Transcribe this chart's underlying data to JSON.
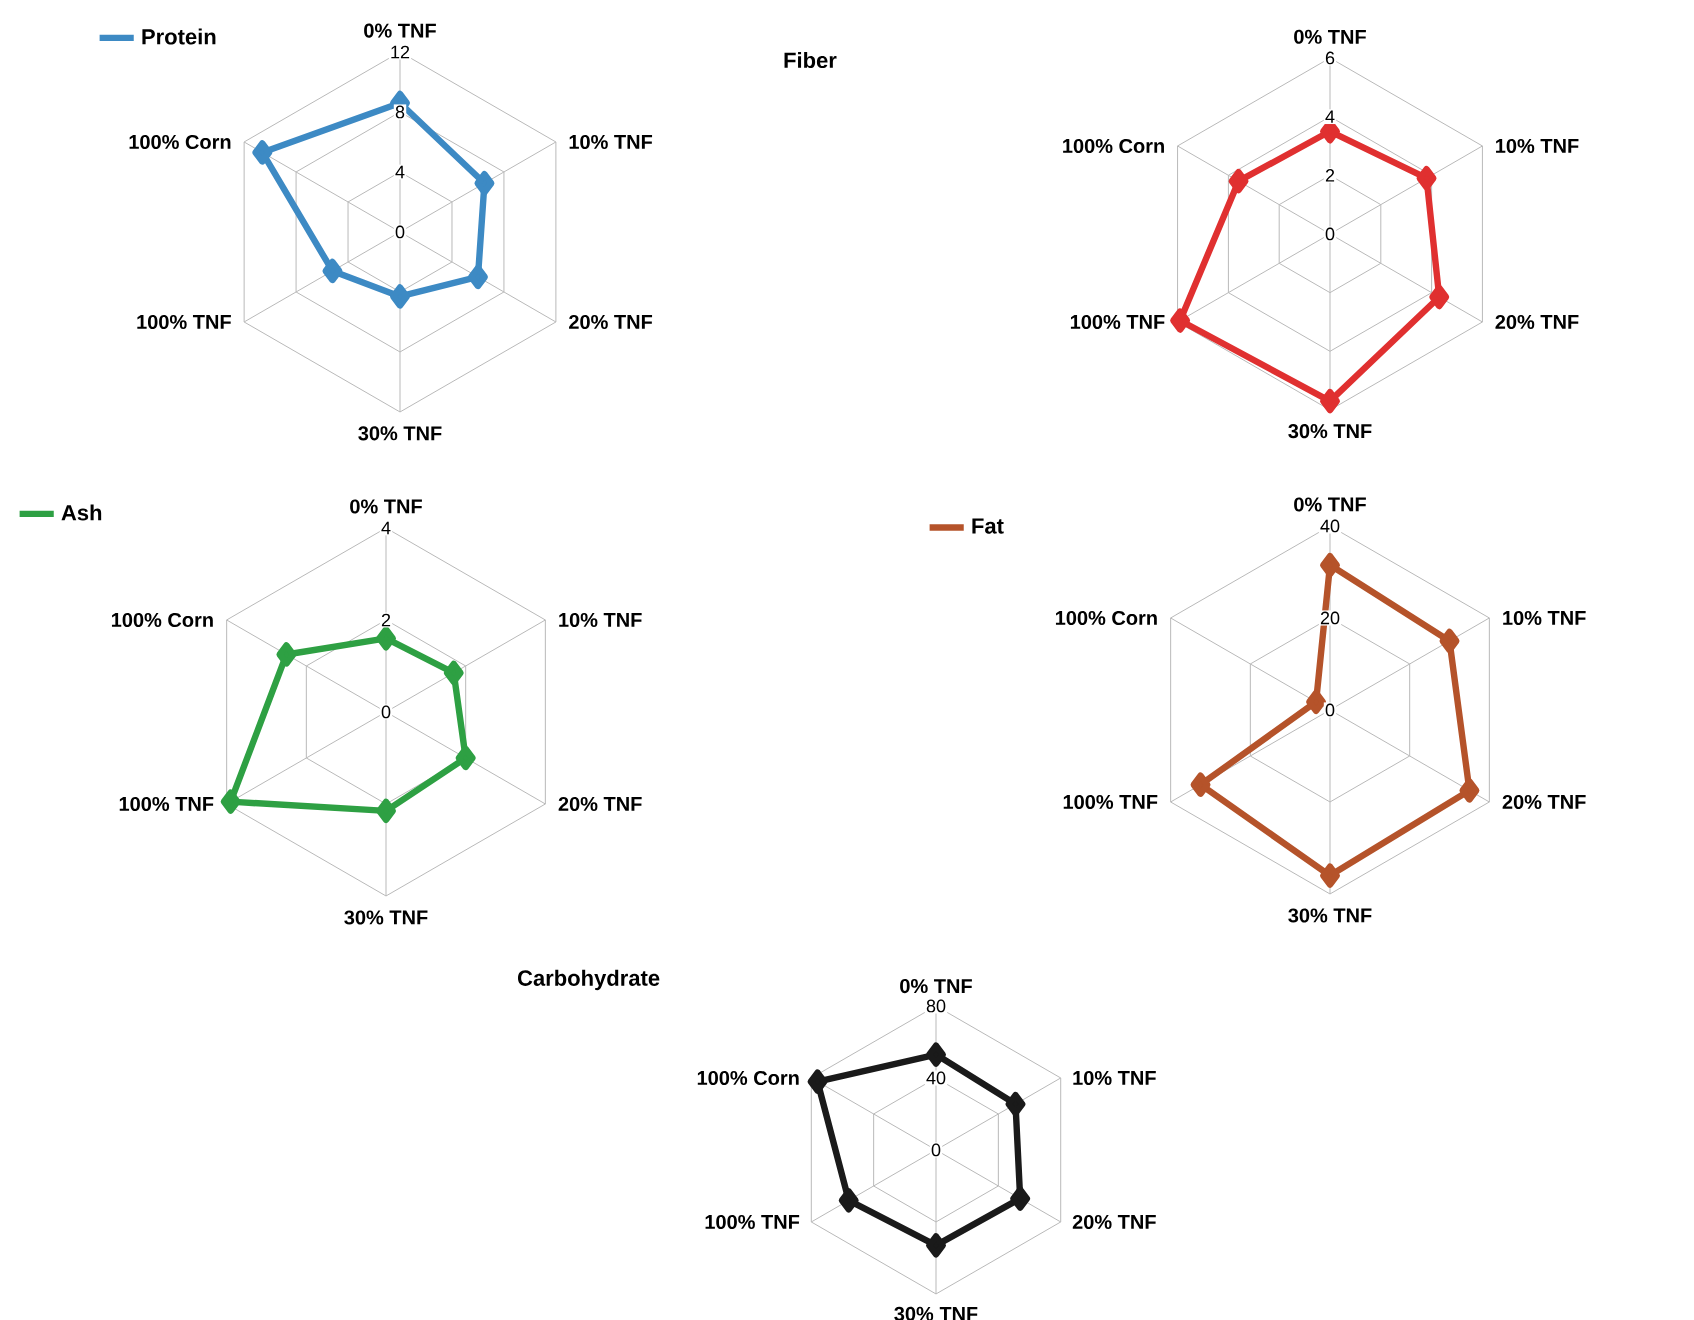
{
  "chart_data": [
    {
      "type": "radar",
      "categories": [
        "0% TNF",
        "10% TNF",
        "20% TNF",
        "30% TNF",
        "100% TNF",
        "100% Corn"
      ],
      "series": [
        {
          "name": "Protein",
          "color": "#3d8ac4",
          "values": [
            8.6,
            6.5,
            6,
            4.3,
            5.2,
            10.6
          ]
        }
      ],
      "ylim": [
        0,
        12
      ],
      "yticks": [
        0,
        4,
        8,
        12
      ],
      "grid": true,
      "legend": "top left",
      "marker": "diamond",
      "line_style": "solid"
    },
    {
      "type": "radar",
      "title": "Fiber",
      "categories": [
        "0% TNF",
        "10% TNF",
        "20% TNF",
        "30% TNF",
        "100% TNF",
        "100% Corn"
      ],
      "series": [
        {
          "color": "#e03030",
          "values": [
            3.5,
            3.8,
            4.3,
            5.7,
            5.9,
            3.6
          ]
        }
      ],
      "ylim": [
        0,
        6
      ],
      "yticks": [
        0,
        2,
        4,
        6
      ],
      "grid": true,
      "marker": "diamond",
      "line_style": "solid"
    },
    {
      "type": "radar",
      "categories": [
        "0% TNF",
        "10% TNF",
        "20% TNF",
        "30% TNF",
        "100% TNF",
        "100% Corn"
      ],
      "series": [
        {
          "name": "Ash",
          "color": "#2ea043",
          "values": [
            1.6,
            1.7,
            2.0,
            2.15,
            3.9,
            2.5
          ]
        }
      ],
      "ylim": [
        0,
        4
      ],
      "yticks": [
        0,
        2,
        4
      ],
      "grid": true,
      "legend": "top left",
      "marker": "diamond",
      "line_style": "solid"
    },
    {
      "type": "radar",
      "categories": [
        "0% TNF",
        "10% TNF",
        "20% TNF",
        "30% TNF",
        "100% TNF",
        "100% Corn"
      ],
      "series": [
        {
          "name": "Fat",
          "color": "#b5532a",
          "values": [
            31.5,
            30,
            35,
            36,
            32.5,
            3.5
          ]
        }
      ],
      "ylim": [
        0,
        40
      ],
      "yticks": [
        0,
        20,
        40
      ],
      "grid": true,
      "legend": "top left",
      "marker": "diamond",
      "line_style": "solid"
    },
    {
      "type": "radar",
      "title": "Carbohydrate",
      "categories": [
        "0% TNF",
        "10% TNF",
        "20% TNF",
        "30% TNF",
        "100% TNF",
        "100% Corn"
      ],
      "series": [
        {
          "color": "#1a1a1a",
          "values": [
            53,
            51,
            54,
            53,
            56,
            76
          ]
        }
      ],
      "ylim": [
        0,
        80
      ],
      "yticks": [
        0,
        40,
        80
      ],
      "grid": true,
      "marker": "diamond",
      "line_style": "solid"
    }
  ]
}
